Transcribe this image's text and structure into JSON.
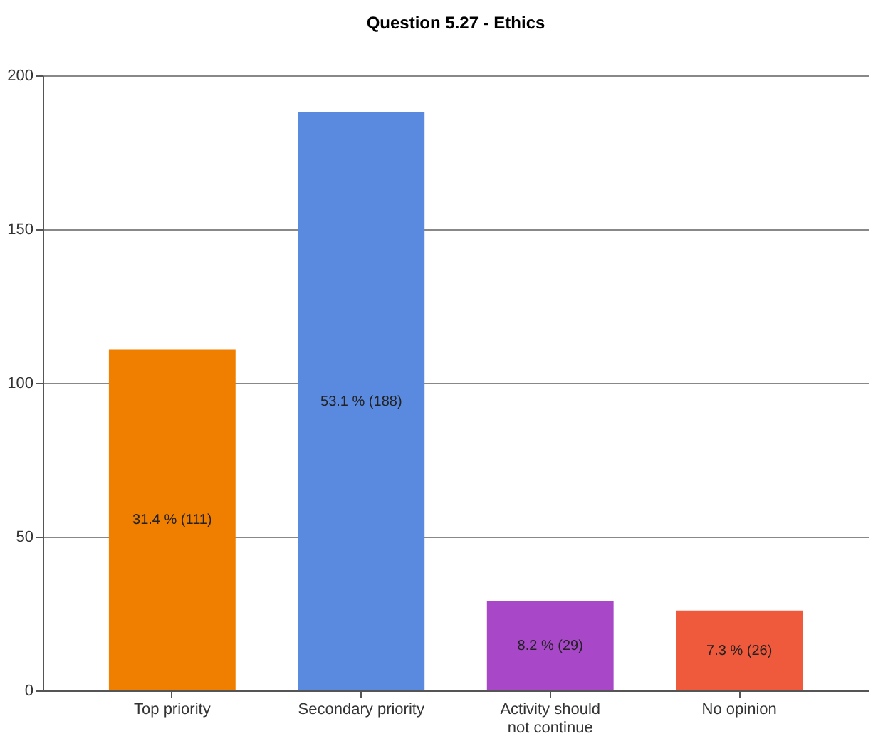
{
  "chart_data": {
    "type": "bar",
    "title": "Question 5.27 - Ethics",
    "categories": [
      "Top priority",
      "Secondary priority",
      "Activity should not continue",
      "No opinion"
    ],
    "values": [
      111,
      188,
      29,
      26
    ],
    "colors": [
      "#f07f00",
      "#5a8ae0",
      "#a848c8",
      "#f05a3c"
    ],
    "value_labels": [
      "31.4 % (111)",
      "53.1 % (188)",
      "8.2 % (29)",
      "7.3 % (26)"
    ],
    "ylim": [
      0,
      200
    ],
    "yticks": [
      0,
      50,
      100,
      150,
      200
    ],
    "grid": "y"
  }
}
